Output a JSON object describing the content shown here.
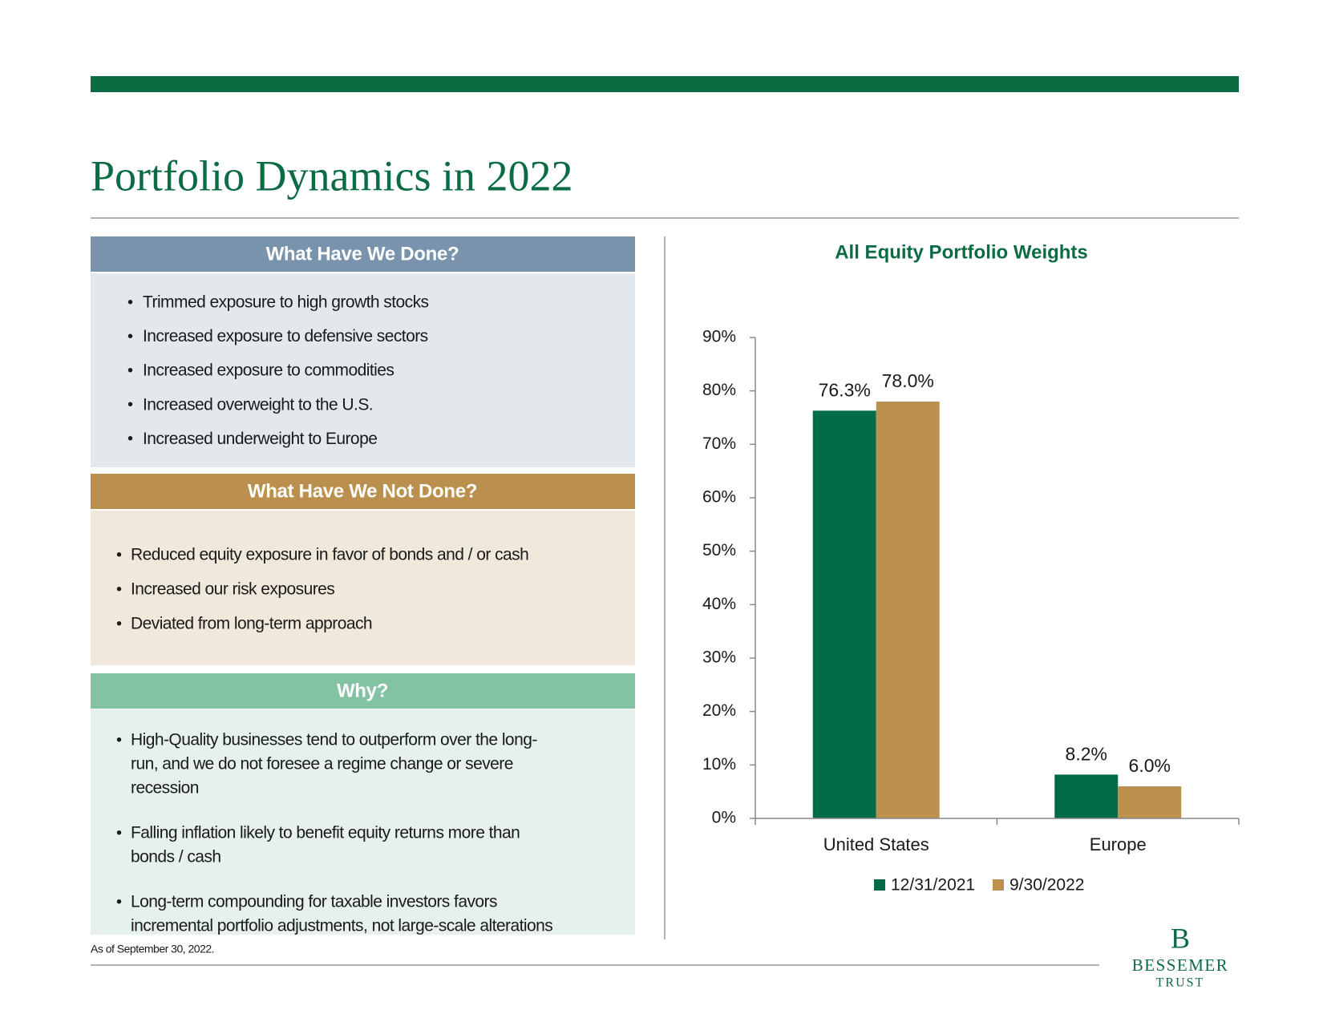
{
  "title": "Portfolio Dynamics in 2022",
  "panels": [
    {
      "heading": "What Have We Done?",
      "items": [
        [
          "Trimmed exposure to high growth stocks"
        ],
        [
          "Increased exposure to defensive sectors"
        ],
        [
          "Increased exposure to commodities"
        ],
        [
          "Increased overweight to the U.S."
        ],
        [
          "Increased underweight to Europe"
        ]
      ]
    },
    {
      "heading": "What Have We Not Done?",
      "items": [
        [
          "Reduced equity exposure in favor of bonds and / or cash"
        ],
        [
          "Increased our risk exposures"
        ],
        [
          "Deviated from long-term approach"
        ]
      ]
    },
    {
      "heading": "Why?",
      "items": [
        [
          "High-Quality businesses tend to outperform over the long-",
          "run, and we do not foresee a regime change or severe",
          "recession"
        ],
        [
          "Falling inflation likely to benefit equity returns more than",
          "bonds / cash"
        ],
        [
          "Long-term compounding for taxable investors favors",
          "incremental portfolio adjustments, not large-scale alterations"
        ]
      ]
    }
  ],
  "footnote": "As of September 30, 2022.",
  "logo": {
    "mark": "B",
    "name": "BESSEMER",
    "sub": "TRUST"
  },
  "chart_data": {
    "type": "bar",
    "title": "All Equity Portfolio Weights",
    "categories": [
      "United States",
      "Europe"
    ],
    "series": [
      {
        "name": "12/31/2021",
        "color": "#006b45",
        "values": [
          76.3,
          8.2
        ],
        "value_labels": [
          "76.3%",
          "8.2%"
        ]
      },
      {
        "name": "9/30/2022",
        "color": "#bc914e",
        "values": [
          78.0,
          6.0
        ],
        "value_labels": [
          "78.0%",
          "6.0%"
        ]
      }
    ],
    "ylim": [
      0,
      90
    ],
    "yticks": [
      {
        "value": 0,
        "label": "0%"
      },
      {
        "value": 10,
        "label": "10%"
      },
      {
        "value": 20,
        "label": "20%"
      },
      {
        "value": 30,
        "label": "30%"
      },
      {
        "value": 40,
        "label": "40%"
      },
      {
        "value": 50,
        "label": "50%"
      },
      {
        "value": 60,
        "label": "60%"
      },
      {
        "value": 70,
        "label": "70%"
      },
      {
        "value": 80,
        "label": "80%"
      },
      {
        "value": 90,
        "label": "90%"
      }
    ],
    "legend": "bottom"
  }
}
